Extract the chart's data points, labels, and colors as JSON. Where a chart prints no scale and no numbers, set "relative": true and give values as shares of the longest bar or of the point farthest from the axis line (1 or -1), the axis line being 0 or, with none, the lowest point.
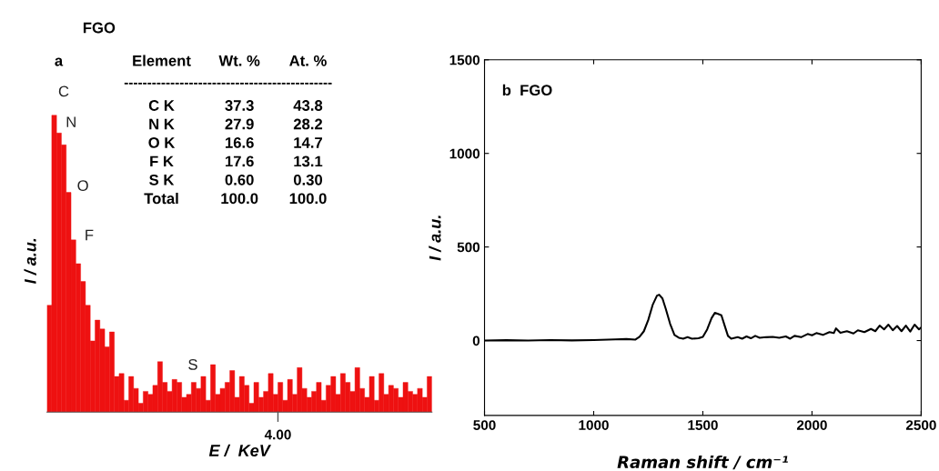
{
  "chart_data": [
    {
      "type": "bar",
      "title": "FGO",
      "xlabel": "E /  KeV",
      "ylabel": "I / a.u.",
      "relative": true,
      "color": "#ee1111",
      "categories": [
        null,
        null,
        null,
        null,
        null,
        null,
        null,
        null,
        null,
        null,
        null,
        null,
        null,
        null,
        null,
        null,
        null,
        null,
        null,
        null,
        null,
        null,
        null,
        null,
        null,
        null,
        null,
        null,
        null,
        null,
        null,
        null,
        null,
        null,
        null,
        null,
        null,
        null,
        null,
        null,
        null,
        null,
        null,
        null,
        null,
        null,
        null,
        null,
        null,
        null,
        null,
        null,
        null,
        null,
        null,
        null,
        null,
        null,
        null,
        null,
        null,
        null,
        null,
        null,
        null,
        null,
        null,
        null,
        null,
        null,
        null,
        null,
        null,
        null,
        null,
        null,
        null,
        null,
        null,
        null
      ],
      "values": [
        0.36,
        1.0,
        0.94,
        0.9,
        0.74,
        0.58,
        0.5,
        0.44,
        0.36,
        0.24,
        0.31,
        0.28,
        0.22,
        0.27,
        0.12,
        0.13,
        0.04,
        0.12,
        0.08,
        0.03,
        0.07,
        0.06,
        0.09,
        0.17,
        0.1,
        0.07,
        0.11,
        0.1,
        0.05,
        0.06,
        0.1,
        0.08,
        0.12,
        0.04,
        0.16,
        0.06,
        0.08,
        0.1,
        0.14,
        0.05,
        0.12,
        0.09,
        0.03,
        0.1,
        0.05,
        0.07,
        0.13,
        0.06,
        0.1,
        0.04,
        0.11,
        0.06,
        0.15,
        0.08,
        0.05,
        0.07,
        0.1,
        0.04,
        0.09,
        0.12,
        0.06,
        0.13,
        0.1,
        0.07,
        0.15,
        0.08,
        0.05,
        0.12,
        0.04,
        0.13,
        0.06,
        0.09,
        0.08,
        0.05,
        0.1,
        0.07,
        0.06,
        0.08,
        0.05,
        0.12
      ],
      "annotations": [
        "a",
        "Element",
        "Wt. %",
        "At. %",
        "---------------------------------------------",
        "C K",
        "37.3",
        "43.8",
        "N K",
        "27.9",
        "28.2",
        "O K",
        "16.6",
        "14.7",
        "F K",
        "17.6",
        "13.1",
        "S K",
        "0.60",
        "0.30",
        "Total",
        "100.0",
        "100.0",
        "C",
        "N",
        "O",
        "F",
        "S",
        "4.00"
      ]
    },
    {
      "type": "line",
      "xlabel": "Raman shift / cm⁻¹",
      "ylabel": "I / a.u.",
      "xlim": [
        500,
        2500
      ],
      "ylim": [
        -400,
        1500
      ],
      "xticks": [
        500,
        1000,
        1500,
        2000,
        2500
      ],
      "yticks": [
        0,
        500,
        1000,
        1500
      ],
      "grid": false,
      "legend": false,
      "annotations": [
        "b  FGO"
      ],
      "series": [
        {
          "color": "#000000",
          "x": [
            500,
            600,
            700,
            800,
            900,
            1000,
            1100,
            1150,
            1190,
            1210,
            1230,
            1250,
            1270,
            1290,
            1300,
            1315,
            1330,
            1350,
            1370,
            1390,
            1410,
            1430,
            1450,
            1480,
            1500,
            1520,
            1540,
            1555,
            1570,
            1585,
            1600,
            1615,
            1630,
            1660,
            1680,
            1700,
            1720,
            1740,
            1760,
            1790,
            1820,
            1850,
            1880,
            1900,
            1920,
            1950,
            1980,
            2000,
            2020,
            2050,
            2080,
            2100,
            2110,
            2130,
            2160,
            2190,
            2210,
            2240,
            2270,
            2290,
            2310,
            2330,
            2350,
            2370,
            2390,
            2410,
            2430,
            2450,
            2470,
            2490,
            2500
          ],
          "values": [
            0,
            2,
            0,
            3,
            1,
            3,
            6,
            8,
            5,
            20,
            50,
            110,
            190,
            240,
            245,
            225,
            170,
            90,
            30,
            15,
            10,
            18,
            10,
            12,
            20,
            60,
            120,
            148,
            142,
            135,
            80,
            25,
            10,
            18,
            10,
            22,
            12,
            25,
            15,
            18,
            20,
            15,
            22,
            10,
            25,
            18,
            35,
            28,
            40,
            30,
            45,
            40,
            65,
            42,
            50,
            38,
            55,
            45,
            62,
            50,
            80,
            60,
            85,
            55,
            78,
            50,
            80,
            48,
            85,
            60,
            70
          ]
        }
      ]
    }
  ]
}
